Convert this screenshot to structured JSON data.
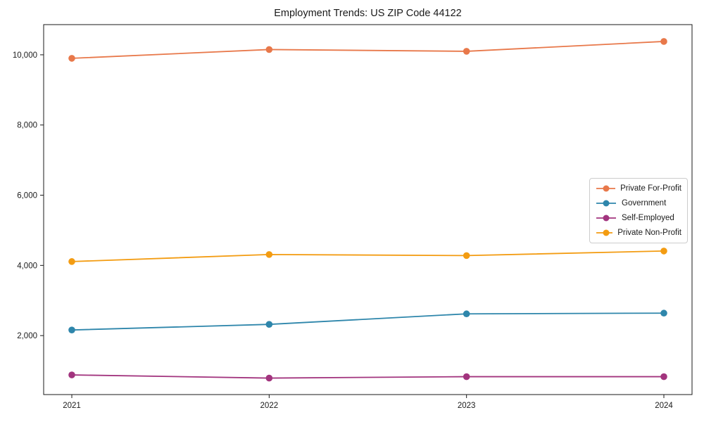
{
  "chart_data": {
    "type": "line",
    "title": "Employment Trends: US ZIP Code 44122",
    "x": [
      2021,
      2022,
      2023,
      2024
    ],
    "xtick_labels": [
      "2021",
      "2022",
      "2023",
      "2024"
    ],
    "series": [
      {
        "name": "Private For-Profit",
        "color": "#E8784A",
        "values": [
          9900,
          10150,
          10100,
          10380
        ]
      },
      {
        "name": "Government",
        "color": "#2E86AB",
        "values": [
          2160,
          2320,
          2620,
          2640
        ]
      },
      {
        "name": "Self-Employed",
        "color": "#A2347E",
        "values": [
          880,
          790,
          830,
          830
        ]
      },
      {
        "name": "Private Non-Profit",
        "color": "#F39C12",
        "values": [
          4110,
          4310,
          4280,
          4410
        ]
      }
    ],
    "yticks": [
      2000,
      4000,
      6000,
      8000,
      10000
    ],
    "ytick_labels": [
      "2,000",
      "4,000",
      "6,000",
      "8,000",
      "10,000"
    ],
    "ylim": [
      320,
      10860
    ],
    "xlabel": "",
    "ylabel": "",
    "grid": false,
    "legend_position": "center-right",
    "marker": "circle",
    "axis_color": "#1a1a1a"
  }
}
